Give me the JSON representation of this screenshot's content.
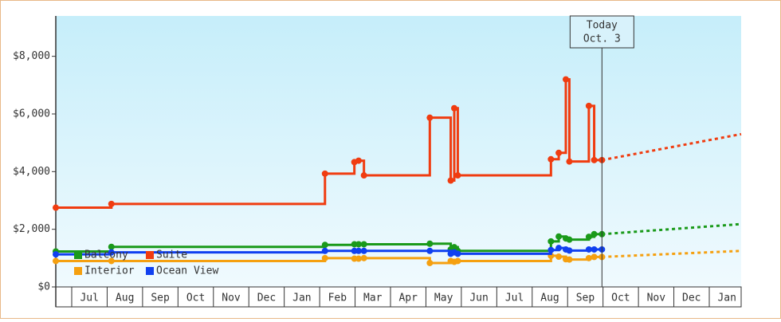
{
  "chart_data": {
    "type": "step-line",
    "xlim": [
      -0.45,
      18.9
    ],
    "xticks": [
      {
        "value": 0.5,
        "label": "Jul"
      },
      {
        "value": 1.5,
        "label": "Aug"
      },
      {
        "value": 2.5,
        "label": "Sep"
      },
      {
        "value": 3.5,
        "label": "Oct"
      },
      {
        "value": 4.5,
        "label": "Nov"
      },
      {
        "value": 5.5,
        "label": "Dec"
      },
      {
        "value": 6.5,
        "label": "Jan"
      },
      {
        "value": 7.5,
        "label": "Feb"
      },
      {
        "value": 8.5,
        "label": "Mar"
      },
      {
        "value": 9.5,
        "label": "Apr"
      },
      {
        "value": 10.5,
        "label": "May"
      },
      {
        "value": 11.5,
        "label": "Jun"
      },
      {
        "value": 12.5,
        "label": "Jul"
      },
      {
        "value": 13.5,
        "label": "Aug"
      },
      {
        "value": 14.5,
        "label": "Sep"
      },
      {
        "value": 15.5,
        "label": "Oct"
      },
      {
        "value": 16.5,
        "label": "Nov"
      },
      {
        "value": 17.5,
        "label": "Dec"
      },
      {
        "value": 18.5,
        "label": "Jan"
      }
    ],
    "ylim": [
      0,
      9400
    ],
    "yticks": [
      {
        "value": 0,
        "label": "$0"
      },
      {
        "value": 2000,
        "label": "$2,000"
      },
      {
        "value": 4000,
        "label": "$4,000"
      },
      {
        "value": 6000,
        "label": "$6,000"
      },
      {
        "value": 8000,
        "label": "$8,000"
      }
    ],
    "x": [
      -0.45,
      1.12,
      7.15,
      7.98,
      8.1,
      8.25,
      10.11,
      10.7,
      10.8,
      10.9,
      13.53,
      13.75,
      13.95,
      14.05,
      14.6,
      14.75,
      14.97
    ],
    "series": [
      {
        "name": "Balcony",
        "color": "#1a9a1a",
        "values": [
          1230,
          1390,
          1460,
          1480,
          1480,
          1480,
          1500,
          1300,
          1380,
          1250,
          1580,
          1750,
          1680,
          1640,
          1740,
          1830,
          1830
        ],
        "projection": {
          "x": [
            14.97,
            18.9
          ],
          "values": [
            1830,
            2180
          ]
        }
      },
      {
        "name": "Suite",
        "color": "#f03c10",
        "values": [
          2750,
          2880,
          3930,
          4330,
          4380,
          3870,
          5870,
          3690,
          6200,
          3870,
          4430,
          4650,
          7200,
          4350,
          6280,
          4400,
          4400
        ],
        "projection": {
          "x": [
            14.97,
            18.9
          ],
          "values": [
            4400,
            5300
          ]
        }
      },
      {
        "name": "Interior",
        "color": "#f5a010",
        "values": [
          900,
          900,
          1000,
          980,
          980,
          1000,
          830,
          900,
          870,
          900,
          1080,
          1050,
          960,
          950,
          1000,
          1040,
          1040
        ],
        "projection": {
          "x": [
            14.97,
            18.9
          ],
          "values": [
            1040,
            1250
          ]
        }
      },
      {
        "name": "Ocean View",
        "color": "#1040f0",
        "values": [
          1130,
          1200,
          1250,
          1250,
          1250,
          1250,
          1250,
          1150,
          1200,
          1150,
          1280,
          1350,
          1300,
          1260,
          1300,
          1300,
          1300
        ]
      }
    ],
    "today": {
      "x": 14.97,
      "label": [
        "Today",
        "Oct. 3"
      ]
    }
  }
}
